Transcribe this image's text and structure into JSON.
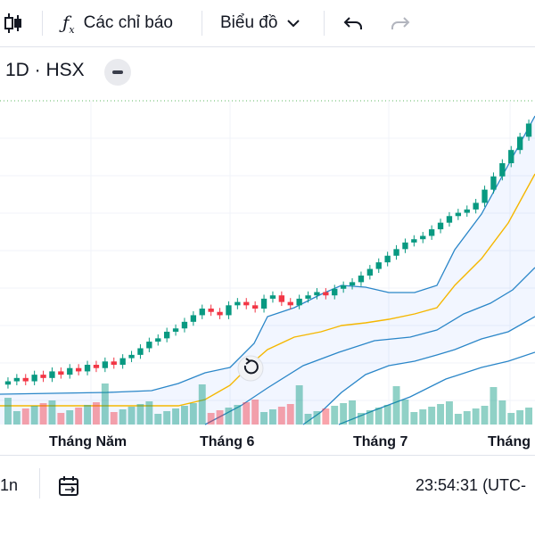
{
  "toolbar": {
    "indicators_label": "Các chỉ báo",
    "chart_type_label": "Biểu đồ"
  },
  "symbol": {
    "label": "1D · HSX"
  },
  "colors": {
    "up": "#089981",
    "down": "#f23645",
    "bollinger": "#2962ff",
    "ma": "#f5b700",
    "ma_blue": "#2a86c8"
  },
  "chart_data": {
    "type": "candlestick",
    "x_tick_labels": [
      "Tháng Năm",
      "Tháng 6",
      "Tháng 7",
      "Tháng"
    ],
    "series": [
      {
        "values": [
          12,
          13,
          12,
          14,
          13,
          15,
          14,
          16,
          15,
          17,
          16,
          18,
          17,
          19,
          20,
          22,
          24,
          25,
          27,
          28,
          30,
          32,
          34,
          33,
          32,
          35,
          36,
          35,
          34,
          37,
          38,
          36,
          35,
          37,
          38,
          39,
          38,
          40,
          41,
          42,
          44,
          46,
          48,
          50,
          52,
          54,
          55,
          56,
          58,
          60,
          62,
          63,
          64,
          66,
          70,
          74,
          78,
          82,
          86,
          90
        ]
      }
    ]
  },
  "bottom": {
    "interval": "1n",
    "time": "23:54:31 (UTC-"
  }
}
